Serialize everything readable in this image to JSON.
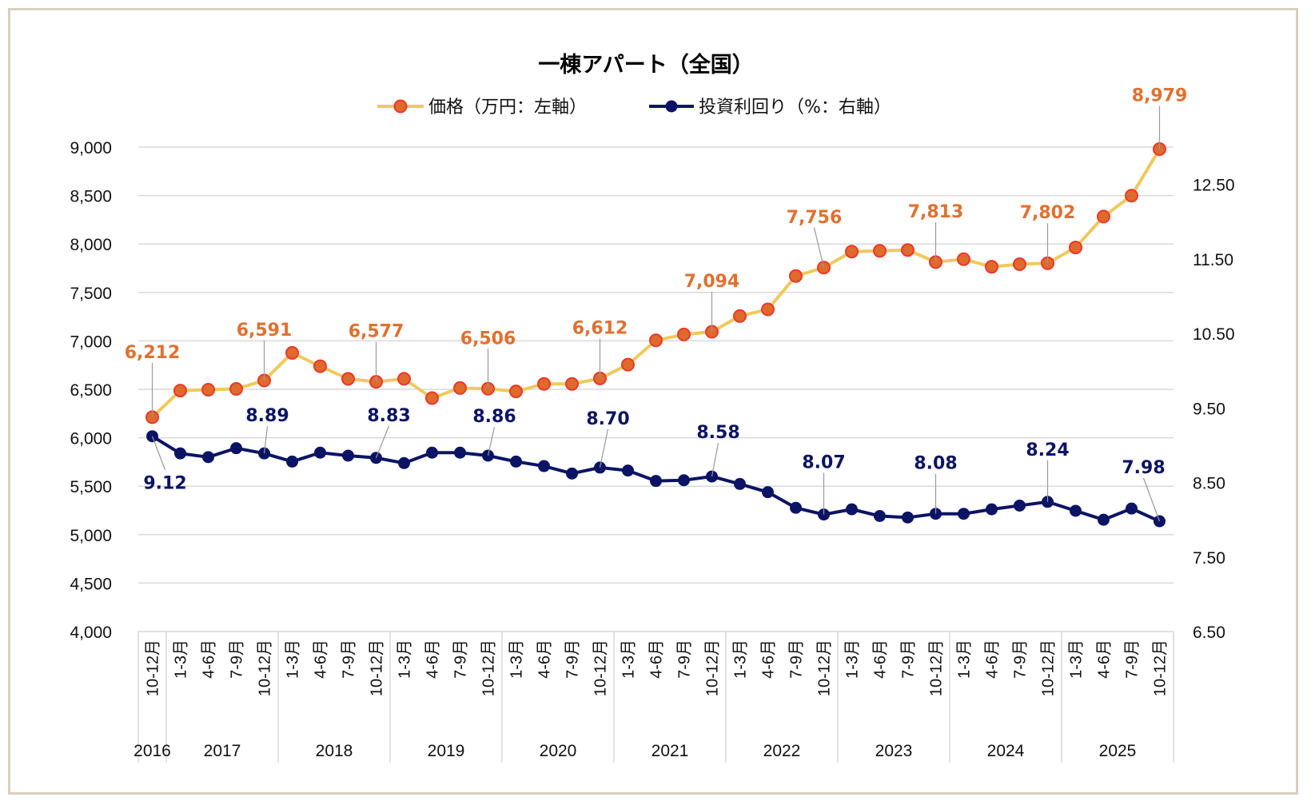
{
  "chart_data": {
    "type": "line",
    "title": "一棟アパート（全国）",
    "legend_placement": "top",
    "grid": true,
    "colors": {
      "price_line": "#efc95c",
      "price_marker": "#e06a2c",
      "price_marker_edge": "#e8392a",
      "price_label": "#e07030",
      "yield": "#0b1464",
      "grid": "#d9d9d9",
      "frame": "#d8cfbf"
    },
    "categories": [
      "10-12月",
      "1-3月",
      "4-6月",
      "7-9月",
      "10-12月",
      "1-3月",
      "4-6月",
      "7-9月",
      "10-12月",
      "1-3月",
      "4-6月",
      "7-9月",
      "10-12月",
      "1-3月",
      "4-6月",
      "7-9月",
      "10-12月",
      "1-3月",
      "4-6月",
      "7-9月",
      "10-12月",
      "1-3月",
      "4-6月",
      "7-9月",
      "10-12月",
      "1-3月",
      "4-6月",
      "7-9月",
      "10-12月",
      "1-3月",
      "4-6月",
      "7-9月",
      "10-12月",
      "1-3月",
      "4-6月",
      "7-9月",
      "10-12月"
    ],
    "years": [
      {
        "label": "2016",
        "count": 1
      },
      {
        "label": "2017",
        "count": 4
      },
      {
        "label": "2018",
        "count": 4
      },
      {
        "label": "2019",
        "count": 4
      },
      {
        "label": "2020",
        "count": 4
      },
      {
        "label": "2021",
        "count": 4
      },
      {
        "label": "2022",
        "count": 4
      },
      {
        "label": "2023",
        "count": 4
      },
      {
        "label": "2024",
        "count": 4
      },
      {
        "label": "2025",
        "count": 4
      }
    ],
    "left_axis": {
      "ylim": [
        4000,
        9000
      ],
      "ticks": [
        "4,000",
        "4,500",
        "5,000",
        "5,500",
        "6,000",
        "6,500",
        "7,000",
        "7,500",
        "8,000",
        "8,500",
        "9,000"
      ]
    },
    "right_axis": {
      "ylim": [
        6.5,
        13.0
      ],
      "ticks": [
        "6.50",
        "7.50",
        "8.50",
        "9.50",
        "10.50",
        "11.50",
        "12.50"
      ]
    },
    "series": [
      {
        "name": "価格（万円：左軸）",
        "axis": "left",
        "values": [
          6212,
          6487,
          6496,
          6504,
          6591,
          6876,
          6738,
          6608,
          6577,
          6608,
          6409,
          6513,
          6506,
          6478,
          6556,
          6556,
          6612,
          6755,
          7005,
          7066,
          7094,
          7256,
          7325,
          7670,
          7756,
          7921,
          7929,
          7938,
          7813,
          7843,
          7765,
          7791,
          7802,
          7964,
          8283,
          8499,
          8979
        ],
        "labels": {
          "0": "6,212",
          "4": "6,591",
          "8": "6,577",
          "12": "6,506",
          "16": "6,612",
          "20": "7,094",
          "24": "7,756",
          "28": "7,813",
          "32": "7,802",
          "36": "8,979"
        }
      },
      {
        "name": "投資利回り（%：右軸）",
        "axis": "right",
        "values": [
          9.12,
          8.89,
          8.84,
          8.96,
          8.89,
          8.78,
          8.9,
          8.86,
          8.83,
          8.76,
          8.9,
          8.9,
          8.86,
          8.78,
          8.72,
          8.62,
          8.7,
          8.66,
          8.52,
          8.53,
          8.58,
          8.48,
          8.37,
          8.16,
          8.07,
          8.14,
          8.05,
          8.03,
          8.08,
          8.08,
          8.14,
          8.19,
          8.24,
          8.12,
          8.0,
          8.15,
          7.98
        ],
        "labels": {
          "0": "9.12",
          "4": "8.89",
          "8": "8.83",
          "12": "8.86",
          "16": "8.70",
          "20": "8.58",
          "24": "8.07",
          "28": "8.08",
          "32": "8.24",
          "36": "7.98"
        }
      }
    ]
  }
}
